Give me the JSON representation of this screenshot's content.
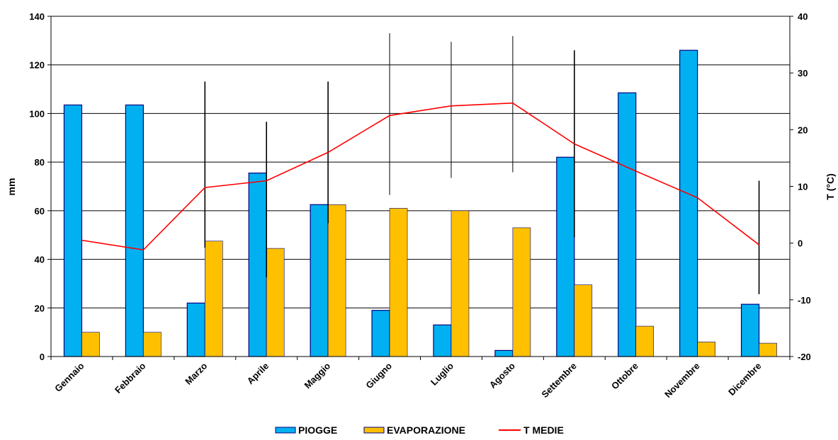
{
  "chart_data": {
    "type": "bar",
    "categories": [
      "Gennaio",
      "Febbraio",
      "Marzo",
      "Aprile",
      "Maggio",
      "Giugno",
      "Luglio",
      "Agosto",
      "Settembre",
      "Ottobre",
      "Novembre",
      "Dicembre"
    ],
    "series": [
      {
        "name": "PIOGGE",
        "type": "bar",
        "axis": "left",
        "color": "#00b0f0",
        "values": [
          103.5,
          103.5,
          22,
          75.5,
          62.5,
          19,
          13,
          2.5,
          82,
          108.5,
          126,
          21.5
        ]
      },
      {
        "name": "EVAPORAZIONE",
        "type": "bar",
        "axis": "left",
        "color": "#ffc000",
        "values": [
          10,
          10,
          47.5,
          44.5,
          62.5,
          61,
          60,
          53,
          29.5,
          12.5,
          6,
          5.5
        ]
      },
      {
        "name": "T MEDIE",
        "type": "line",
        "axis": "right",
        "color": "#ff0000",
        "values": [
          0.5,
          -1.2,
          9.8,
          11,
          16,
          22.5,
          24.2,
          24.7,
          17.5,
          12.7,
          8,
          -0.3
        ]
      }
    ],
    "temp_ranges": [
      {
        "low": null,
        "high": null
      },
      {
        "low": null,
        "high": null
      },
      {
        "low": -0.8,
        "high": 28.5
      },
      {
        "low": -6,
        "high": 21.4
      },
      {
        "low": 3.5,
        "high": 28.5
      },
      {
        "low": 8.5,
        "high": 37
      },
      {
        "low": 11.5,
        "high": 35.5
      },
      {
        "low": 12.5,
        "high": 36.5
      },
      {
        "low": 1,
        "high": 34
      },
      {
        "low": null,
        "high": null
      },
      {
        "low": null,
        "high": null
      },
      {
        "low": -9,
        "high": 11
      }
    ],
    "ylabel": "mm",
    "y2label": "T (°C)",
    "ylim": [
      0,
      140
    ],
    "y2lim": [
      -20,
      40
    ],
    "yticks": [
      "0",
      "20",
      "40",
      "60",
      "80",
      "100",
      "120",
      "140"
    ],
    "y2ticks": [
      "-20",
      "-10",
      "0",
      "10",
      "20",
      "30",
      "40"
    ],
    "grid": true,
    "legend_position": "bottom",
    "bar_outline_color": "#000080",
    "range_line_color": "#000000"
  }
}
